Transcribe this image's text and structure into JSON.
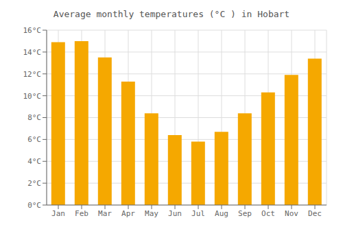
{
  "chart_data": {
    "type": "bar",
    "title": "Average monthly temperatures (°C ) in Hobart",
    "categories": [
      "Jan",
      "Feb",
      "Mar",
      "Apr",
      "May",
      "Jun",
      "Jul",
      "Aug",
      "Sep",
      "Oct",
      "Nov",
      "Dec"
    ],
    "values": [
      14.9,
      15.0,
      13.5,
      11.3,
      8.4,
      6.4,
      5.8,
      6.7,
      8.4,
      10.3,
      11.9,
      13.4
    ],
    "color": "#F5A800",
    "ylim": [
      0,
      16
    ],
    "yticks": [
      {
        "value": 0,
        "label": "0°C"
      },
      {
        "value": 2,
        "label": "2°C"
      },
      {
        "value": 4,
        "label": "4°C"
      },
      {
        "value": 6,
        "label": "6°C"
      },
      {
        "value": 8,
        "label": "8°C"
      },
      {
        "value": 10,
        "label": "10°C"
      },
      {
        "value": 12,
        "label": "12°C"
      },
      {
        "value": 14,
        "label": "14°C"
      },
      {
        "value": 16,
        "label": "16°C"
      }
    ],
    "grid": true
  }
}
